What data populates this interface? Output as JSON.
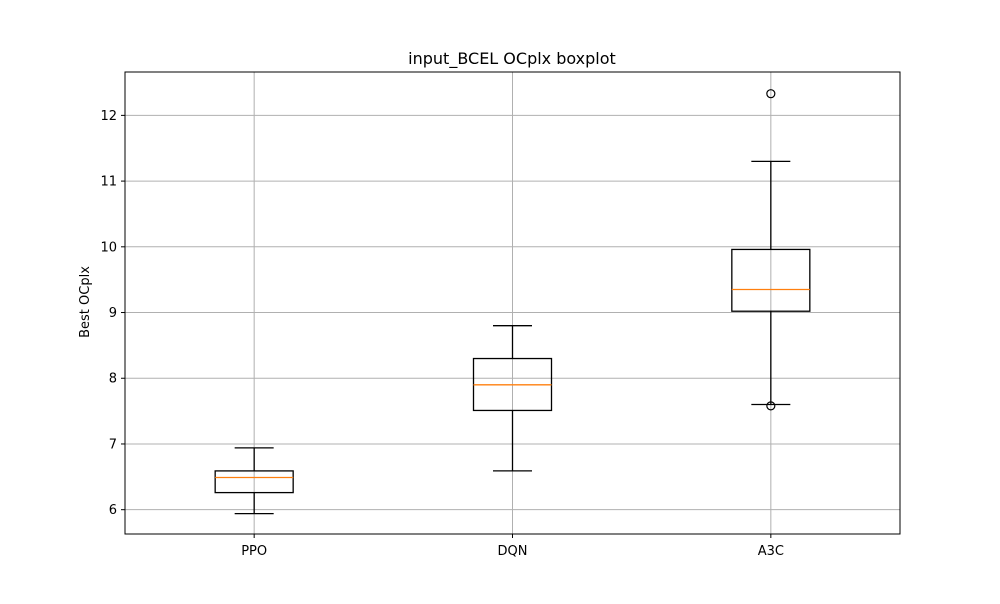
{
  "chart_data": {
    "type": "boxplot",
    "title": "input_BCEL OCplx boxplot",
    "xlabel": "",
    "ylabel": "Best OCplx",
    "categories": [
      "PPO",
      "DQN",
      "A3C"
    ],
    "ylim": [
      5.63,
      12.66
    ],
    "yticks": [
      6,
      7,
      8,
      9,
      10,
      11,
      12
    ],
    "grid": true,
    "colors": {
      "box": "#000000",
      "median": "#ff7f0e",
      "grid": "#b0b0b0"
    },
    "boxes": [
      {
        "name": "PPO",
        "whisker_low": 5.94,
        "q1": 6.26,
        "median": 6.49,
        "q3": 6.59,
        "whisker_high": 6.94,
        "outliers": []
      },
      {
        "name": "DQN",
        "whisker_low": 6.59,
        "q1": 7.51,
        "median": 7.9,
        "q3": 8.3,
        "whisker_high": 8.8,
        "outliers": []
      },
      {
        "name": "A3C",
        "whisker_low": 7.6,
        "q1": 9.02,
        "median": 9.35,
        "q3": 9.96,
        "whisker_high": 11.3,
        "outliers": [
          7.58,
          12.33
        ]
      }
    ]
  }
}
